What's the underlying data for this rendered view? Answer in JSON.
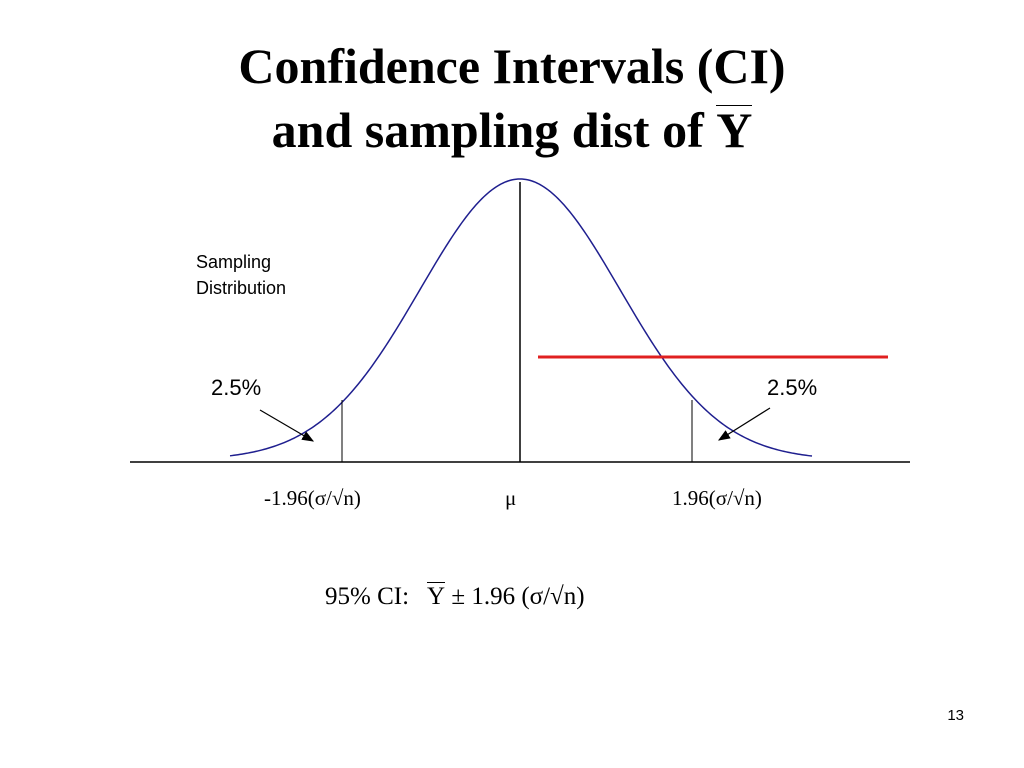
{
  "slide": {
    "title_line1": "Confidence Intervals (CI)",
    "title_line2_prefix": "and sampling dist of ",
    "title_line2_symbol": "Y",
    "page_number": "13"
  },
  "figure": {
    "curve_label_line1": "Sampling",
    "curve_label_line2": "Distribution",
    "left_tail_pct": "2.5%",
    "right_tail_pct": "2.5%",
    "tick_left": "-1.96(σ/√n)",
    "tick_mid": "μ",
    "tick_right": "1.96(σ/√n)",
    "curve_color": "#1f1f8f",
    "highlight_color": "#e02020"
  },
  "formula": {
    "prefix": "95% CI:",
    "symbol": "Y",
    "suffix": "± 1.96 (σ/√n)"
  }
}
